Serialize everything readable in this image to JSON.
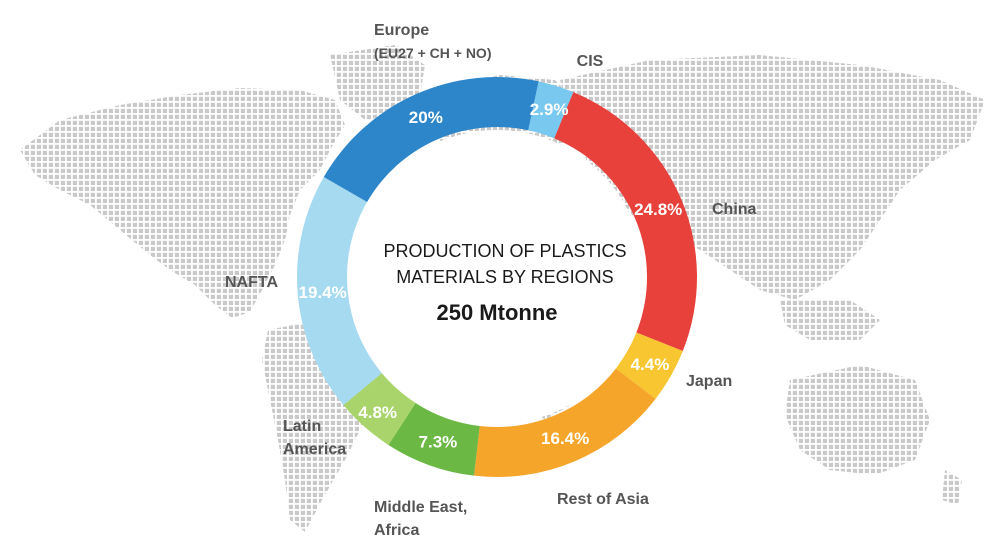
{
  "chart_data": {
    "type": "pie",
    "title_lines": [
      "PRODUCTION OF PLASTICS",
      "MATERIALS BY REGIONS"
    ],
    "total": "250 Mtonne",
    "slices": [
      {
        "region_lines": [
          "CIS"
        ],
        "value": 2.9,
        "label": "2.9%",
        "color": "#79c8f0"
      },
      {
        "region_lines": [
          "China"
        ],
        "value": 24.8,
        "label": "24.8%",
        "color": "#e8403b"
      },
      {
        "region_lines": [
          "Japan"
        ],
        "value": 4.4,
        "label": "4.4%",
        "color": "#f8c630"
      },
      {
        "region_lines": [
          "Rest of Asia"
        ],
        "value": 16.4,
        "label": "16.4%",
        "color": "#f5a52a"
      },
      {
        "region_lines": [
          "Middle East,",
          "Africa"
        ],
        "value": 7.3,
        "label": "7.3%",
        "color": "#6cb845"
      },
      {
        "region_lines": [
          "Latin",
          "America"
        ],
        "value": 4.8,
        "label": "4.8%",
        "color": "#a9d46b"
      },
      {
        "region_lines": [
          "NAFTA"
        ],
        "value": 19.4,
        "label": "19.4%",
        "color": "#a6daf0"
      },
      {
        "region_lines": [
          "Europe",
          "(EU27 + CH + NO)"
        ],
        "value": 20,
        "label": "20%",
        "color": "#2d86c9"
      }
    ],
    "map_color": "#c9c9c9",
    "background": "#ffffff"
  }
}
